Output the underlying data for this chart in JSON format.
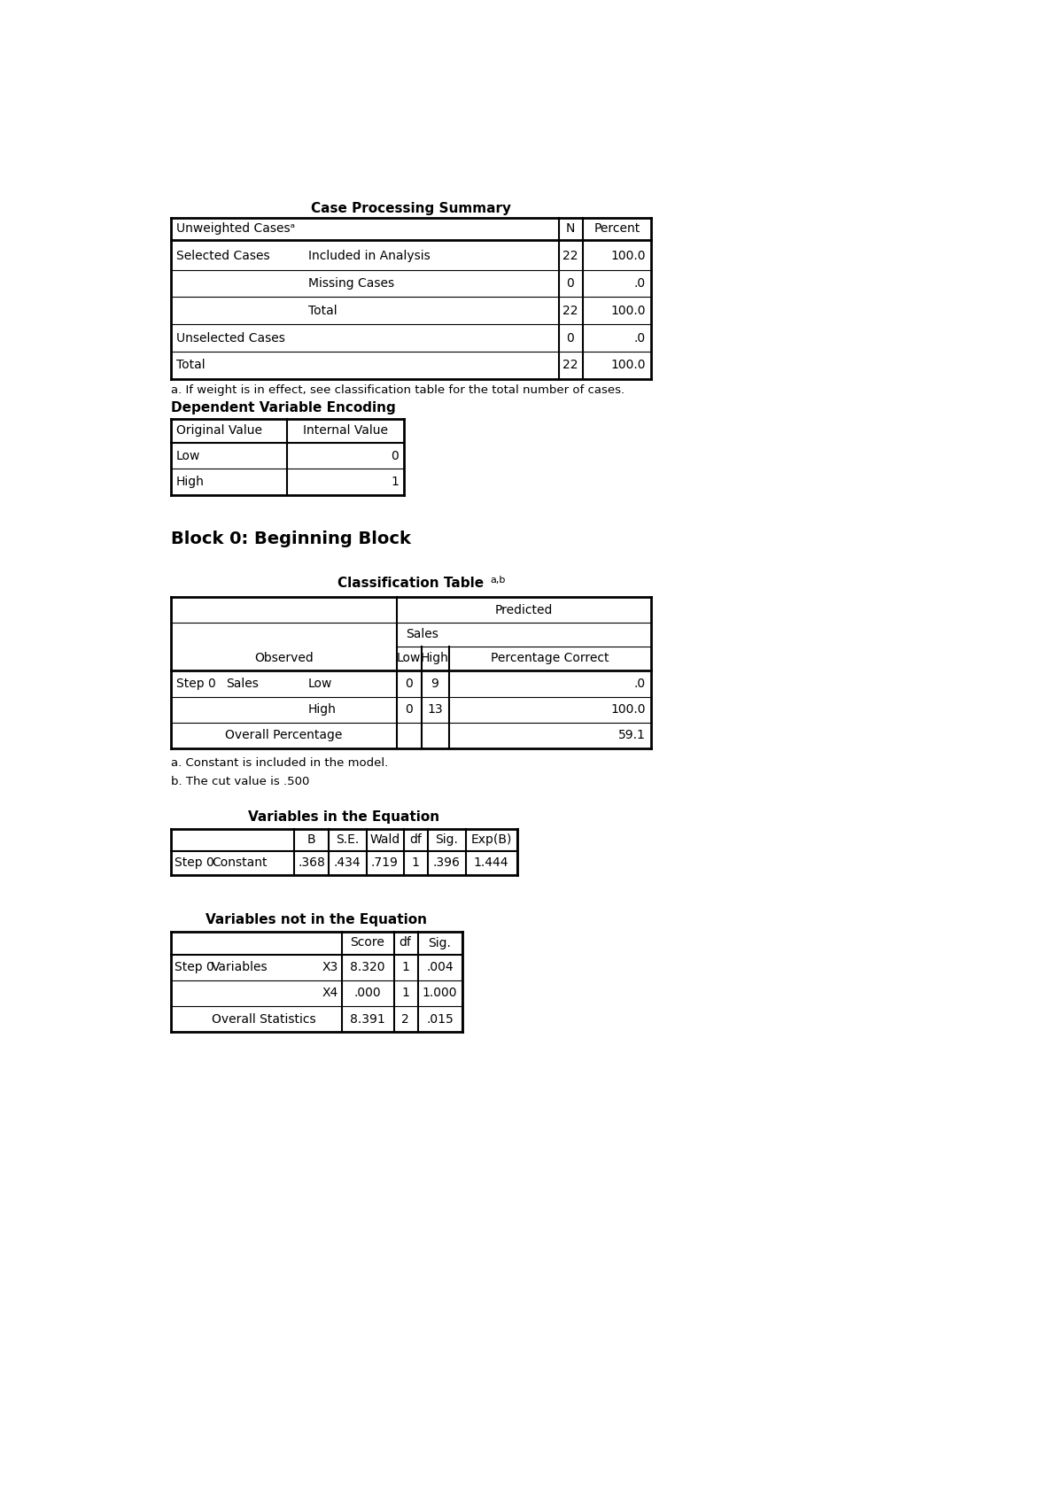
{
  "page_bg": "#ffffff",
  "table1_title": "Case Processing Summary",
  "table1_footnote": "a. If weight is in effect, see classification table for the total number of cases.",
  "table2_title": "Dependent Variable Encoding",
  "table2_rows": [
    [
      "Low",
      "0"
    ],
    [
      "High",
      "1"
    ]
  ],
  "block_title": "Block 0: Beginning Block",
  "table3_footnote_a": "a. Constant is included in the model.",
  "table3_footnote_b": "b. The cut value is .500",
  "table4_title": "Variables in the Equation",
  "table4_row": [
    "Step 0",
    "Constant",
    ".368",
    ".434",
    ".719",
    "1",
    ".396",
    "1.444"
  ],
  "table5_title": "Variables not in the Equation",
  "table5_rows": [
    [
      "Step 0",
      "Variables",
      "X3",
      "8.320",
      "1",
      ".004"
    ],
    [
      "",
      "",
      "X4",
      ".000",
      "1",
      "1.000"
    ],
    [
      "",
      "Overall Statistics",
      "",
      "8.391",
      "2",
      ".015"
    ]
  ]
}
